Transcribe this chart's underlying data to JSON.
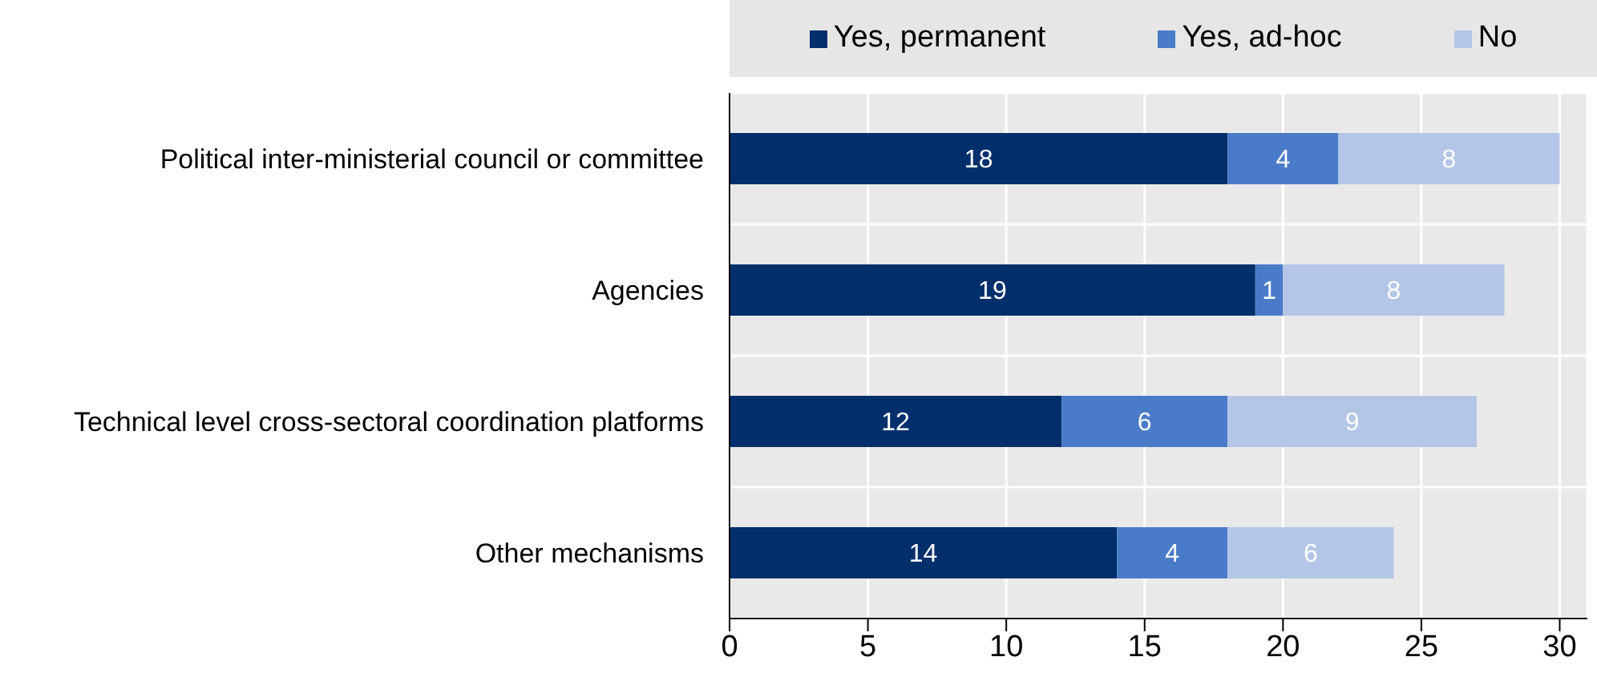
{
  "chart_data": {
    "type": "bar",
    "orientation": "horizontal",
    "stacked": true,
    "categories": [
      "Political inter-ministerial council or committee",
      "Agencies",
      "Technical level cross-sectoral coordination platforms",
      "Other mechanisms"
    ],
    "series": [
      {
        "name": "Yes, permanent",
        "color": "#002f6c",
        "values": [
          18,
          19,
          12,
          14
        ]
      },
      {
        "name": "Yes, ad-hoc",
        "color": "#4a7bc8",
        "values": [
          4,
          1,
          6,
          4
        ]
      },
      {
        "name": "No",
        "color": "#b4c6e7",
        "values": [
          8,
          8,
          9,
          6
        ]
      }
    ],
    "xlim": [
      0,
      31
    ],
    "xticks": [
      0,
      5,
      10,
      15,
      20,
      25,
      30
    ],
    "grid": true,
    "legend": "top",
    "data_labels": true
  }
}
